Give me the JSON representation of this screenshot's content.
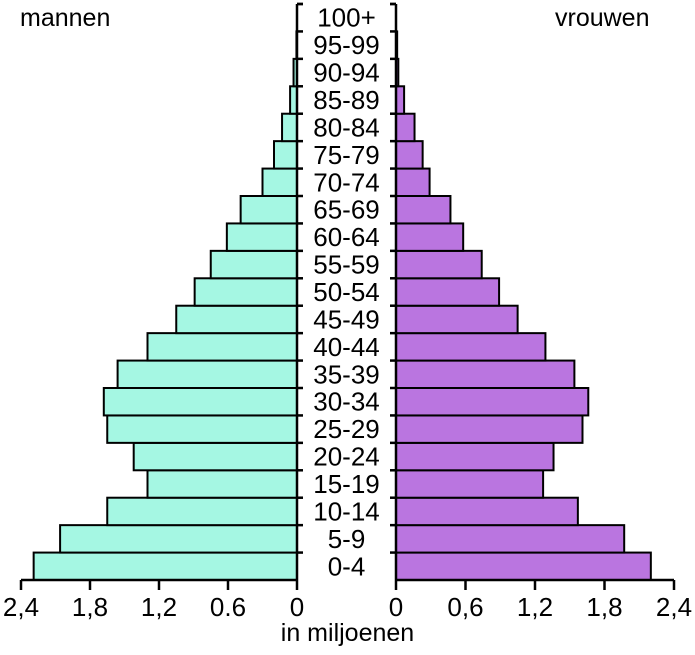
{
  "labels": {
    "left": "mannen",
    "right": "vrouwen",
    "xlabel": "in miljoenen"
  },
  "colors": {
    "men": "#a5f7e3",
    "women": "#ba75e0"
  },
  "chart_data": {
    "type": "bar",
    "subtype": "population-pyramid",
    "title": "",
    "xlabel": "in miljoenen",
    "ylabel": "",
    "legend": [
      "mannen",
      "vrouwen"
    ],
    "left_tick_labels": [
      "2,4",
      "1,8",
      "1,2",
      "0.6",
      "0"
    ],
    "right_tick_labels": [
      "0",
      "0,6",
      "1,2",
      "1,8",
      "2,4"
    ],
    "xlim": [
      0,
      2.4
    ],
    "grid": false,
    "categories": [
      "0-4",
      "5-9",
      "10-14",
      "15-19",
      "20-24",
      "25-29",
      "30-34",
      "35-39",
      "40-44",
      "45-49",
      "50-54",
      "55-59",
      "60-64",
      "65-69",
      "70-74",
      "75-79",
      "80-84",
      "85-89",
      "90-94",
      "95-99",
      "100+"
    ],
    "series": [
      {
        "name": "mannen",
        "side": "left",
        "values": [
          2.29,
          2.06,
          1.65,
          1.3,
          1.42,
          1.65,
          1.68,
          1.56,
          1.3,
          1.05,
          0.89,
          0.75,
          0.61,
          0.49,
          0.3,
          0.2,
          0.13,
          0.06,
          0.03,
          0.005,
          0.0
        ]
      },
      {
        "name": "vrouwen",
        "side": "right",
        "values": [
          2.2,
          1.97,
          1.57,
          1.27,
          1.36,
          1.61,
          1.66,
          1.54,
          1.29,
          1.05,
          0.89,
          0.74,
          0.58,
          0.47,
          0.29,
          0.23,
          0.16,
          0.07,
          0.02,
          0.01,
          0.0
        ]
      }
    ]
  }
}
